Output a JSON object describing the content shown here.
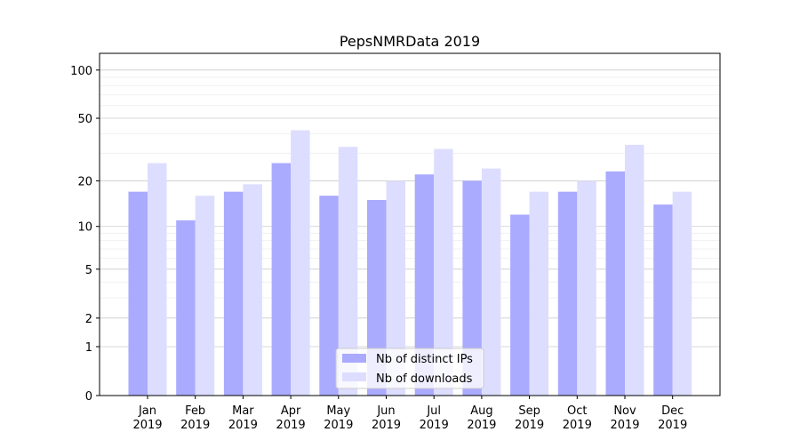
{
  "chart_data": {
    "type": "bar",
    "title": "PepsNMRData 2019",
    "xlabel": "",
    "ylabel": "",
    "yscale": "symlog (log10(1+y))",
    "ylim": [
      0,
      120
    ],
    "yticks": [
      0,
      1,
      2,
      5,
      10,
      20,
      50,
      100
    ],
    "grid": true,
    "legend_position": "bottom-center",
    "categories": [
      [
        "Jan",
        "2019"
      ],
      [
        "Feb",
        "2019"
      ],
      [
        "Mar",
        "2019"
      ],
      [
        "Apr",
        "2019"
      ],
      [
        "May",
        "2019"
      ],
      [
        "Jun",
        "2019"
      ],
      [
        "Jul",
        "2019"
      ],
      [
        "Aug",
        "2019"
      ],
      [
        "Sep",
        "2019"
      ],
      [
        "Oct",
        "2019"
      ],
      [
        "Nov",
        "2019"
      ],
      [
        "Dec",
        "2019"
      ]
    ],
    "series": [
      {
        "name": "Nb of distinct IPs",
        "color": "#aaaaff",
        "values": [
          17,
          11,
          17,
          26,
          16,
          15,
          22,
          20,
          12,
          17,
          23,
          14
        ]
      },
      {
        "name": "Nb of downloads",
        "color": "#ddddff",
        "values": [
          26,
          16,
          19,
          42,
          33,
          20,
          32,
          24,
          17,
          20,
          34,
          17
        ]
      }
    ]
  }
}
